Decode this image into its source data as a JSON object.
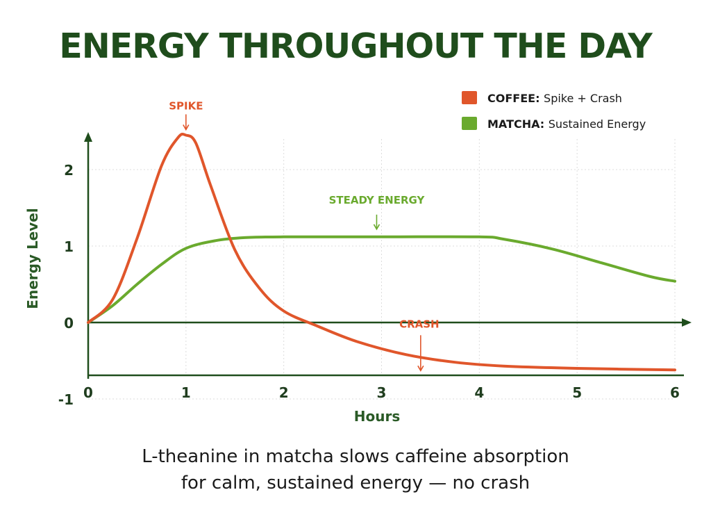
{
  "chart_data": {
    "type": "line",
    "title": "ENERGY THROUGHOUT THE DAY",
    "xlabel": "Hours",
    "ylabel": "Energy Level",
    "xlim": [
      0,
      6
    ],
    "ylim": [
      -1,
      2.5
    ],
    "x_ticks": [
      "0",
      "1",
      "2",
      "3",
      "4",
      "5",
      "6"
    ],
    "y_ticks": [
      "2",
      "1",
      "0",
      "-1"
    ],
    "grid": true,
    "legend": {
      "placement": "top-right",
      "items": [
        {
          "prefix": "COFFEE:",
          "text": "Spike + Crash",
          "color": "#e0562b"
        },
        {
          "prefix": "MATCHA:",
          "text": "Sustained Energy",
          "color": "#6aaa2e"
        }
      ]
    },
    "series": [
      {
        "key": "coffee",
        "color": "#e0562b",
        "points": [
          [
            0,
            0
          ],
          [
            0.25,
            0.3
          ],
          [
            0.5,
            1.1
          ],
          [
            0.75,
            2.05
          ],
          [
            0.92,
            2.42
          ],
          [
            1.0,
            2.45
          ],
          [
            1.1,
            2.35
          ],
          [
            1.25,
            1.8
          ],
          [
            1.5,
            0.95
          ],
          [
            1.75,
            0.45
          ],
          [
            2.0,
            0.15
          ],
          [
            2.35,
            -0.05
          ],
          [
            2.75,
            -0.25
          ],
          [
            3.25,
            -0.42
          ],
          [
            3.75,
            -0.52
          ],
          [
            4.25,
            -0.57
          ],
          [
            5.0,
            -0.6
          ],
          [
            6.0,
            -0.62
          ]
        ]
      },
      {
        "key": "matcha",
        "color": "#6aaa2e",
        "points": [
          [
            0,
            0
          ],
          [
            0.25,
            0.22
          ],
          [
            0.5,
            0.5
          ],
          [
            0.75,
            0.76
          ],
          [
            1.0,
            0.97
          ],
          [
            1.3,
            1.07
          ],
          [
            1.6,
            1.11
          ],
          [
            2.0,
            1.12
          ],
          [
            3.0,
            1.12
          ],
          [
            4.0,
            1.12
          ],
          [
            4.25,
            1.09
          ],
          [
            4.75,
            0.96
          ],
          [
            5.25,
            0.78
          ],
          [
            5.75,
            0.6
          ],
          [
            6.0,
            0.54
          ]
        ]
      }
    ],
    "annotations": [
      {
        "key": "spike",
        "text": "SPIKE",
        "color": "#e0562b",
        "x": 1.0,
        "y": 2.45
      },
      {
        "key": "steady",
        "text": "STEADY ENERGY",
        "color": "#6aaa2e",
        "x": 2.95,
        "y": 1.12
      },
      {
        "key": "crash",
        "text": "CRASH",
        "color": "#e0562b",
        "x": 3.4,
        "y": -0.33
      }
    ]
  },
  "caption": {
    "line1": "L-theanine in matcha slows caffeine absorption",
    "line2": "for calm, sustained energy — no crash"
  }
}
